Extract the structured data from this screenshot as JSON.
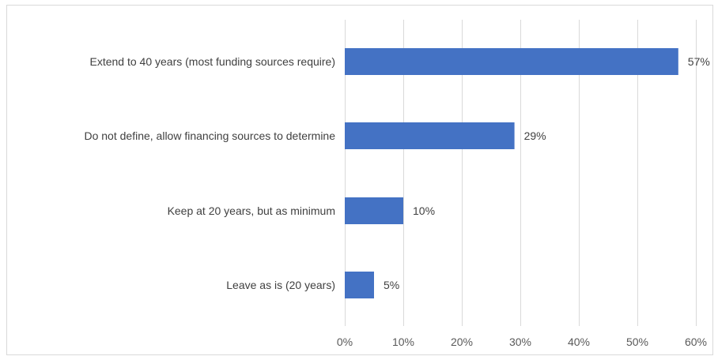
{
  "chart_data": {
    "type": "bar",
    "orientation": "horizontal",
    "categories": [
      "Extend to 40 years (most funding sources require)",
      "Do not define, allow financing sources to determine",
      "Keep at 20 years, but as minimum",
      "Leave as is (20 years)"
    ],
    "values": [
      57,
      29,
      10,
      5
    ],
    "data_labels": [
      "57%",
      "29%",
      "10%",
      "5%"
    ],
    "xlim": [
      0,
      60
    ],
    "x_ticks": [
      0,
      10,
      20,
      30,
      40,
      50,
      60
    ],
    "x_tick_labels": [
      "0%",
      "10%",
      "20%",
      "30%",
      "40%",
      "50%",
      "60%"
    ],
    "grid": "vertical",
    "legend": "none",
    "title": "",
    "xlabel": "",
    "ylabel": "",
    "bar_color": "#4472c4",
    "grid_color": "#d9d9d9"
  }
}
